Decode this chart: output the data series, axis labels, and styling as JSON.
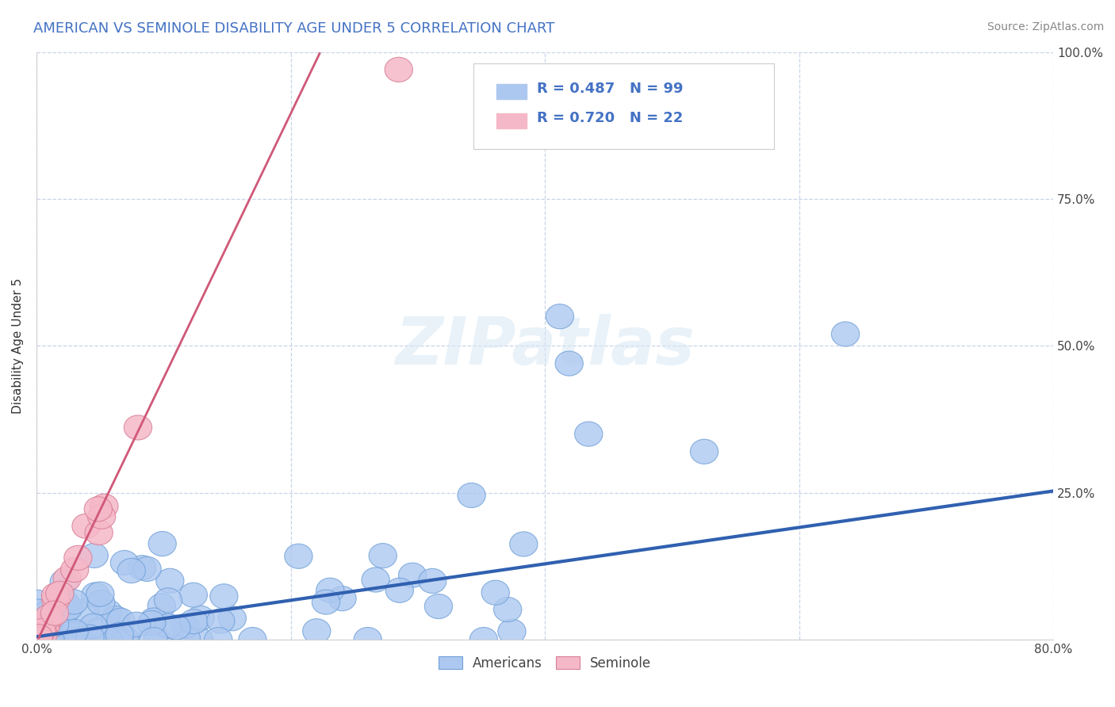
{
  "title": "AMERICAN VS SEMINOLE DISABILITY AGE UNDER 5 CORRELATION CHART",
  "source": "Source: ZipAtlas.com",
  "ylabel": "Disability Age Under 5",
  "xlim": [
    0.0,
    0.8
  ],
  "ylim": [
    0.0,
    1.0
  ],
  "xticks": [
    0.0,
    0.2,
    0.4,
    0.6,
    0.8
  ],
  "xtick_labels_show": [
    "0.0%",
    "",
    "",
    "",
    "80.0%"
  ],
  "yticks": [
    0.0,
    0.25,
    0.5,
    0.75,
    1.0
  ],
  "ytick_labels": [
    "",
    "25.0%",
    "50.0%",
    "75.0%",
    "100.0%"
  ],
  "american_color": "#adc8f0",
  "american_edge_color": "#6fa0d8",
  "seminole_color": "#f5b8c8",
  "seminole_edge_color": "#d88098",
  "american_R": 0.487,
  "american_N": 99,
  "seminole_R": 0.72,
  "seminole_N": 22,
  "regression_blue_color": "#3060b0",
  "regression_pink_color": "#d05878",
  "regression_dashed_color": "#b8b8b8",
  "legend_text_color": "#4472c4",
  "title_color": "#4472c4",
  "watermark": "ZIPatlas",
  "background_color": "#ffffff",
  "grid_color": "#c8d4e8",
  "seminole_line_slope": 4.5,
  "seminole_line_intercept": -0.005,
  "american_line_slope": 0.31,
  "american_line_intercept": 0.005
}
